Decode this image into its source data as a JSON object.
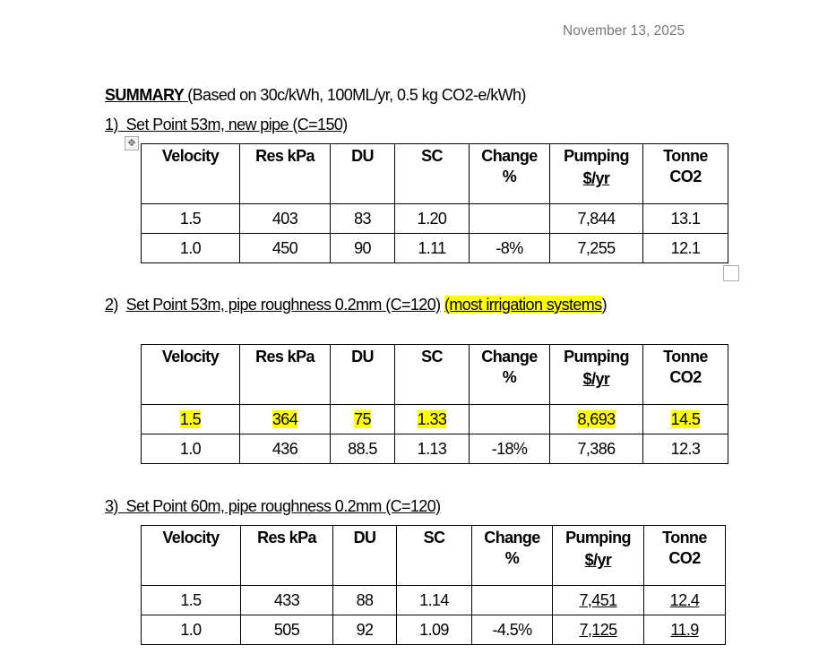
{
  "date": "November 13, 2025",
  "summary": {
    "label": "SUMMARY ",
    "paren_open": "(",
    "rest": "Based on 30c/kWh, 100ML/yr, 0.5 kg CO2-e/kWh)"
  },
  "headers": [
    [
      "Velocity",
      ""
    ],
    [
      "Res kPa",
      ""
    ],
    [
      "DU",
      ""
    ],
    [
      "SC",
      ""
    ],
    [
      "Change",
      "%"
    ],
    [
      "Pumping",
      "$/yr"
    ],
    [
      "Tonne",
      "CO2"
    ]
  ],
  "sections": [
    {
      "number": "1)",
      "title": "Set Point 53m, new pipe (C=150)",
      "note": "",
      "rows": [
        [
          "1.5",
          "403",
          "83",
          "1.20",
          "",
          "7,844",
          "13.1"
        ],
        [
          "1.0",
          "450",
          "90",
          "1.11",
          "-8%",
          "7,255",
          "12.1"
        ]
      ],
      "highlight_row": -1,
      "underline_cols": []
    },
    {
      "number": "2)",
      "title": "Set Point 53m, pipe roughness 0.2mm (C=120)",
      "note": "(most irrigation systems",
      "rows": [
        [
          "1.5",
          "364",
          "75",
          "1.33",
          "",
          "8,693",
          "14.5"
        ],
        [
          "1.0",
          "436",
          "88.5",
          "1.13",
          "-18%",
          "7,386",
          "12.3"
        ]
      ],
      "highlight_row": 0,
      "underline_cols": []
    },
    {
      "number": "3)",
      "title": "Set Point 60m, pipe roughness 0.2mm (C=120)",
      "note": "",
      "rows": [
        [
          "1.5",
          "433",
          "88",
          "1.14",
          "",
          "7,451",
          "12.4"
        ],
        [
          "1.0",
          "505",
          "92",
          "1.09",
          "-4.5%",
          "7,125",
          "11.9"
        ]
      ],
      "highlight_row": -1,
      "underline_cols": [
        5,
        6
      ]
    }
  ],
  "colors": {
    "highlight": "#ffff00",
    "date_text": "#777777"
  },
  "icons": {
    "table_move": "move-arrows-icon",
    "table_resize": "resize-square-icon"
  }
}
